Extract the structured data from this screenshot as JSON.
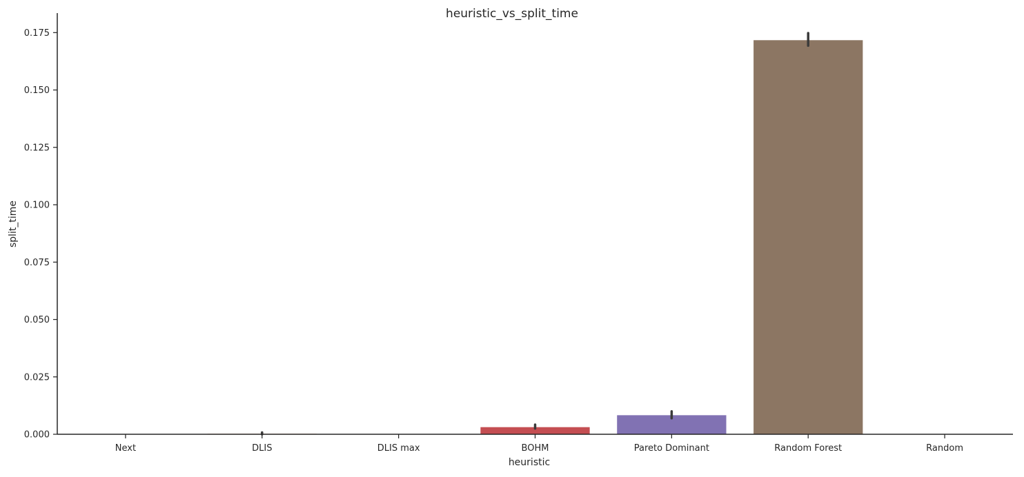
{
  "chart_data": {
    "type": "bar",
    "title": "heuristic_vs_split_time",
    "xlabel": "heuristic",
    "ylabel": "split_time",
    "categories": [
      "Next",
      "DLIS",
      "DLIS max",
      "BOHM",
      "Pareto Dominant",
      "Random Forest",
      "Random"
    ],
    "values": [
      0.0,
      0.0002,
      0.0,
      0.0031,
      0.0083,
      0.1717,
      0.0
    ],
    "error_bars": [
      [
        0.0,
        0.0
      ],
      [
        0.0,
        0.0008
      ],
      [
        0.0,
        0.0
      ],
      [
        0.0025,
        0.0042
      ],
      [
        0.007,
        0.01
      ],
      [
        0.1693,
        0.1748
      ],
      [
        0.0,
        0.0
      ]
    ],
    "ylim": [
      0,
      0.1835
    ],
    "yticks": [
      0.0,
      0.025,
      0.05,
      0.075,
      0.1,
      0.125,
      0.15,
      0.175
    ],
    "ytick_labels": [
      "0.000",
      "0.025",
      "0.050",
      "0.075",
      "0.100",
      "0.125",
      "0.150",
      "0.175"
    ],
    "colors": [
      "#4c72b0",
      "#dd8452",
      "#55a868",
      "#c44e52",
      "#8172b3",
      "#8c7663",
      "#da8bc3"
    ],
    "error_color": "#3b3b3b",
    "axis_color": "#262626",
    "grid": false,
    "legend": "none"
  }
}
